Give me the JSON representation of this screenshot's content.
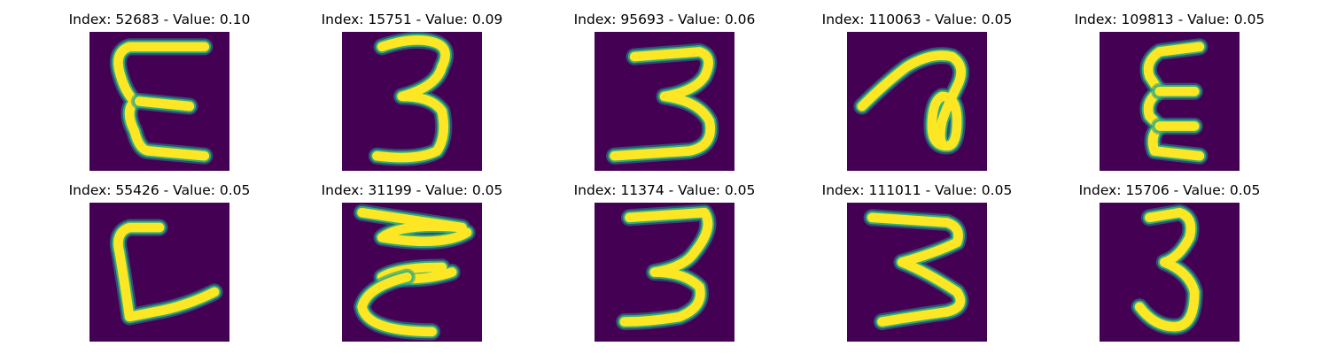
{
  "colors": {
    "background": "#440154",
    "mid": "#21918c",
    "stroke": "#fde725",
    "edge": "#35b779"
  },
  "panels": [
    {
      "title": "Index: 52683 - Value: 0.10",
      "index": 52683,
      "value": 0.1,
      "glyph": "reversed-three"
    },
    {
      "title": "Index: 15751 - Value: 0.09",
      "index": 15751,
      "value": 0.09,
      "glyph": "three"
    },
    {
      "title": "Index: 95693 - Value: 0.06",
      "index": 95693,
      "value": 0.06,
      "glyph": "three"
    },
    {
      "title": "Index: 110063 - Value: 0.05",
      "index": 110063,
      "value": 0.05,
      "glyph": "loop-stroke"
    },
    {
      "title": "Index: 109813 - Value: 0.05",
      "index": 109813,
      "value": 0.05,
      "glyph": "reversed-three"
    },
    {
      "title": "Index: 55426 - Value: 0.05",
      "index": 55426,
      "value": 0.05,
      "glyph": "bracket-stroke"
    },
    {
      "title": "Index: 31199 - Value: 0.05",
      "index": 31199,
      "value": 0.05,
      "glyph": "zigzag-three"
    },
    {
      "title": "Index: 11374 - Value: 0.05",
      "index": 11374,
      "value": 0.05,
      "glyph": "three"
    },
    {
      "title": "Index: 111011 - Value: 0.05",
      "index": 111011,
      "value": 0.05,
      "glyph": "three"
    },
    {
      "title": "Index: 15706 - Value: 0.05",
      "index": 15706,
      "value": 0.05,
      "glyph": "three"
    }
  ]
}
